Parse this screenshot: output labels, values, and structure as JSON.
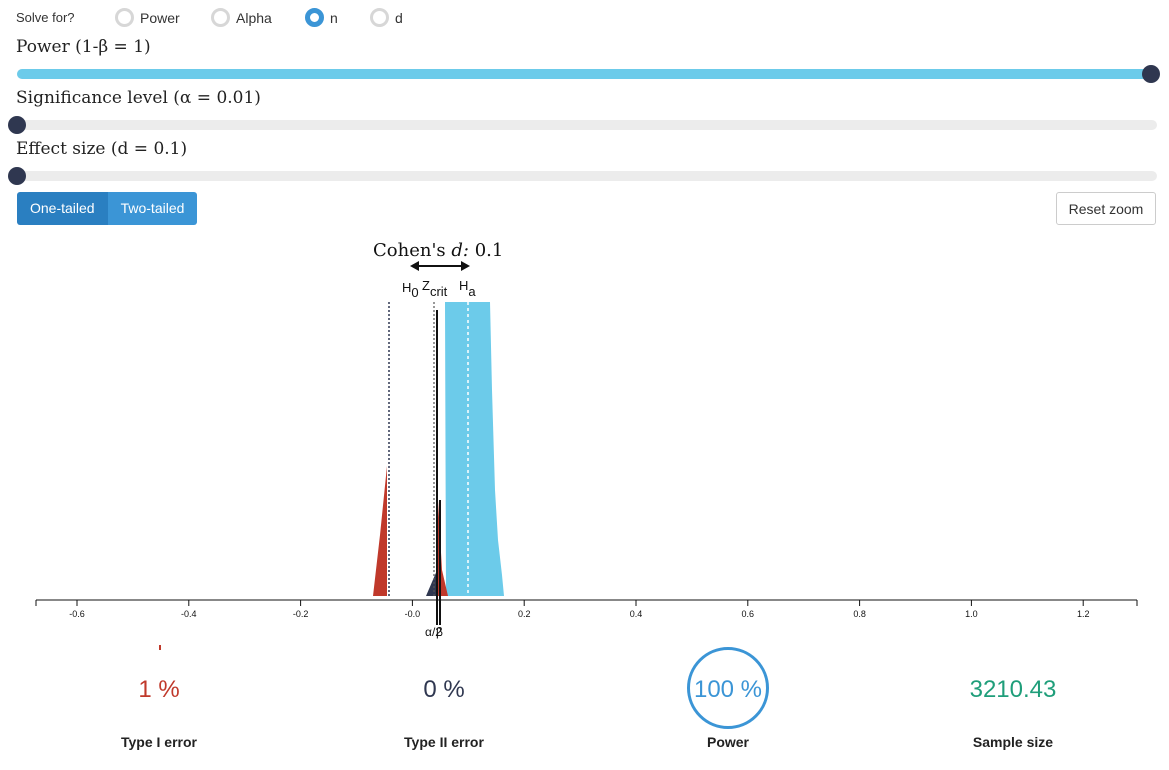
{
  "solve_for": {
    "label": "Solve for?",
    "options": [
      {
        "label": "Power",
        "selected": false
      },
      {
        "label": "Alpha",
        "selected": false
      },
      {
        "label": "n",
        "selected": true
      },
      {
        "label": "d",
        "selected": false
      }
    ]
  },
  "sliders": {
    "power": {
      "label": "Power (1-β = 1)",
      "value_fraction": 1.0
    },
    "alpha": {
      "label": "Significance level (α = 0.01)",
      "value_fraction": 0.0
    },
    "effect": {
      "label": "Effect size (d = 0.1)",
      "value_fraction": 0.0
    }
  },
  "tail_buttons": {
    "one": "One-tailed",
    "two": "Two-tailed",
    "active": "one"
  },
  "reset_zoom_label": "Reset zoom",
  "plot": {
    "cohen_label": "Cohen's",
    "cohen_d": "d:",
    "cohen_value": "0.1",
    "h0": "H",
    "h0_sub": "0",
    "zcrit": "Z",
    "zcrit_sub": "crit",
    "ha": "H",
    "ha_sub": "a",
    "alpha_half": "α/2",
    "beta": "β",
    "x_ticks": [
      "-0.6",
      "-0.4",
      "-0.2",
      "-0.0",
      "0.2",
      "0.4",
      "0.6",
      "0.8",
      "1.0",
      "1.2"
    ],
    "colors": {
      "alpha": "#c0392b",
      "power": "#6ccbea",
      "beta": "#2f3750"
    }
  },
  "stats": {
    "type1": {
      "value": "1 %",
      "label": "Type I error",
      "color": "#c0392b"
    },
    "type2": {
      "value": "0 %",
      "label": "Type II error",
      "color": "#2f3750"
    },
    "power": {
      "value": "100 %",
      "label": "Power",
      "color": "#3b95d6"
    },
    "sample": {
      "value": "3210.43",
      "label": "Sample size",
      "color": "#1f9e7a"
    }
  }
}
